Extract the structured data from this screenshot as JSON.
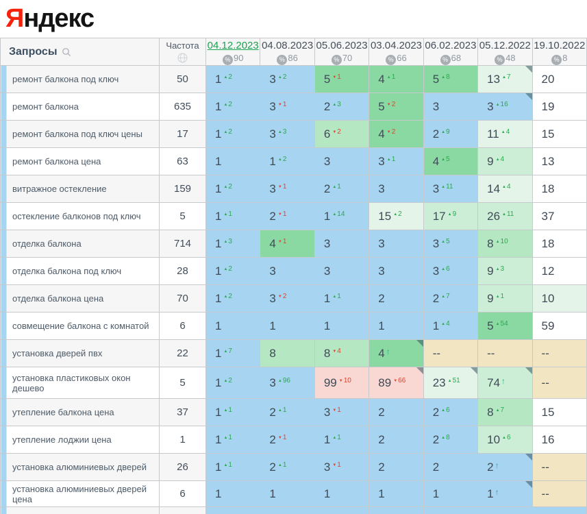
{
  "logo": {
    "first_letter": "Я",
    "rest": "ндекс"
  },
  "colors": {
    "logo_red": "#f5230c",
    "active_date_green": "#1ba24e",
    "delta_up_green": "#2aa94f",
    "delta_down_red": "#e0432e",
    "new_arrow_green": "#2bab7f",
    "cell": {
      "b": "#a7d4f0",
      "g1": "#8bd9a2",
      "g2": "#b4e7c2",
      "g3": "#cdeed6",
      "g4": "#e4f4e9",
      "w": "#ffffff",
      "p": "#f9d8d3",
      "t": "#f2e6c2"
    }
  },
  "table": {
    "queries_header": "Запросы",
    "freq_header": "Частота",
    "percent_symbol": "%",
    "columns": [
      {
        "date": "04.12.2023",
        "coverage": "90",
        "active": true
      },
      {
        "date": "04.08.2023",
        "coverage": "86"
      },
      {
        "date": "05.06.2023",
        "coverage": "70"
      },
      {
        "date": "03.04.2023",
        "coverage": "66"
      },
      {
        "date": "06.02.2023",
        "coverage": "68"
      },
      {
        "date": "05.12.2022",
        "coverage": "48"
      },
      {
        "date": "19.10.2022",
        "coverage": "8"
      }
    ],
    "rows": [
      {
        "query": "ремонт балкона под ключ",
        "freq": "50",
        "cells": [
          {
            "v": "1",
            "d": "2",
            "dir": "up",
            "bg": "b"
          },
          {
            "v": "3",
            "d": "2",
            "dir": "up",
            "bg": "b"
          },
          {
            "v": "5",
            "d": "1",
            "dir": "down",
            "bg": "g1"
          },
          {
            "v": "4",
            "d": "1",
            "dir": "up",
            "bg": "g1"
          },
          {
            "v": "5",
            "d": "8",
            "dir": "up",
            "bg": "g1"
          },
          {
            "v": "13",
            "d": "7",
            "dir": "up",
            "bg": "g4",
            "corner": true
          },
          {
            "v": "20",
            "bg": "w"
          }
        ]
      },
      {
        "query": "ремонт балкона",
        "freq": "635",
        "cells": [
          {
            "v": "1",
            "d": "2",
            "dir": "up",
            "bg": "b"
          },
          {
            "v": "3",
            "d": "1",
            "dir": "down",
            "bg": "b"
          },
          {
            "v": "2",
            "d": "3",
            "dir": "up",
            "bg": "b"
          },
          {
            "v": "5",
            "d": "2",
            "dir": "down",
            "bg": "g1"
          },
          {
            "v": "3",
            "bg": "b"
          },
          {
            "v": "3",
            "d": "16",
            "dir": "up",
            "bg": "b",
            "corner": true
          },
          {
            "v": "19",
            "bg": "w"
          }
        ]
      },
      {
        "query": "ремонт балкона под ключ цены",
        "freq": "17",
        "cells": [
          {
            "v": "1",
            "d": "2",
            "dir": "up",
            "bg": "b"
          },
          {
            "v": "3",
            "d": "3",
            "dir": "up",
            "bg": "b"
          },
          {
            "v": "6",
            "d": "2",
            "dir": "down",
            "bg": "g2"
          },
          {
            "v": "4",
            "d": "2",
            "dir": "down",
            "bg": "g1"
          },
          {
            "v": "2",
            "d": "9",
            "dir": "up",
            "bg": "b"
          },
          {
            "v": "11",
            "d": "4",
            "dir": "up",
            "bg": "g4"
          },
          {
            "v": "15",
            "bg": "w"
          }
        ]
      },
      {
        "query": "ремонт балкона цена",
        "freq": "63",
        "cells": [
          {
            "v": "1",
            "bg": "b"
          },
          {
            "v": "1",
            "d": "2",
            "dir": "up",
            "bg": "b"
          },
          {
            "v": "3",
            "bg": "b"
          },
          {
            "v": "3",
            "d": "1",
            "dir": "up",
            "bg": "b"
          },
          {
            "v": "4",
            "d": "5",
            "dir": "up",
            "bg": "g1"
          },
          {
            "v": "9",
            "d": "4",
            "dir": "up",
            "bg": "g3"
          },
          {
            "v": "13",
            "bg": "w"
          }
        ]
      },
      {
        "query": "витражное остекление",
        "freq": "159",
        "cells": [
          {
            "v": "1",
            "d": "2",
            "dir": "up",
            "bg": "b"
          },
          {
            "v": "3",
            "d": "1",
            "dir": "down",
            "bg": "b"
          },
          {
            "v": "2",
            "d": "1",
            "dir": "up",
            "bg": "b"
          },
          {
            "v": "3",
            "bg": "b"
          },
          {
            "v": "3",
            "d": "11",
            "dir": "up",
            "bg": "b"
          },
          {
            "v": "14",
            "d": "4",
            "dir": "up",
            "bg": "g4"
          },
          {
            "v": "18",
            "bg": "w"
          }
        ]
      },
      {
        "query": "остекление балконов под ключ",
        "freq": "5",
        "cells": [
          {
            "v": "1",
            "d": "1",
            "dir": "up",
            "bg": "b"
          },
          {
            "v": "2",
            "d": "1",
            "dir": "down",
            "bg": "b"
          },
          {
            "v": "1",
            "d": "14",
            "dir": "up",
            "bg": "b"
          },
          {
            "v": "15",
            "d": "2",
            "dir": "up",
            "bg": "g4"
          },
          {
            "v": "17",
            "d": "9",
            "dir": "up",
            "bg": "g3"
          },
          {
            "v": "26",
            "d": "11",
            "dir": "up",
            "bg": "g3"
          },
          {
            "v": "37",
            "bg": "w"
          }
        ]
      },
      {
        "query": "отделка балкона",
        "freq": "714",
        "cells": [
          {
            "v": "1",
            "d": "3",
            "dir": "up",
            "bg": "b"
          },
          {
            "v": "4",
            "d": "1",
            "dir": "down",
            "bg": "g1"
          },
          {
            "v": "3",
            "bg": "b"
          },
          {
            "v": "3",
            "bg": "b"
          },
          {
            "v": "3",
            "d": "5",
            "dir": "up",
            "bg": "b"
          },
          {
            "v": "8",
            "d": "10",
            "dir": "up",
            "bg": "g2"
          },
          {
            "v": "18",
            "bg": "w"
          }
        ]
      },
      {
        "query": "отделка балкона под ключ",
        "freq": "28",
        "cells": [
          {
            "v": "1",
            "d": "2",
            "dir": "up",
            "bg": "b"
          },
          {
            "v": "3",
            "bg": "b"
          },
          {
            "v": "3",
            "bg": "b"
          },
          {
            "v": "3",
            "bg": "b"
          },
          {
            "v": "3",
            "d": "6",
            "dir": "up",
            "bg": "b"
          },
          {
            "v": "9",
            "d": "3",
            "dir": "up",
            "bg": "g3"
          },
          {
            "v": "12",
            "bg": "w"
          }
        ]
      },
      {
        "query": "отделка балкона цена",
        "freq": "70",
        "cells": [
          {
            "v": "1",
            "d": "2",
            "dir": "up",
            "bg": "b"
          },
          {
            "v": "3",
            "d": "2",
            "dir": "down",
            "bg": "b"
          },
          {
            "v": "1",
            "d": "1",
            "dir": "up",
            "bg": "b"
          },
          {
            "v": "2",
            "bg": "b"
          },
          {
            "v": "2",
            "d": "7",
            "dir": "up",
            "bg": "b"
          },
          {
            "v": "9",
            "d": "1",
            "dir": "up",
            "bg": "g3"
          },
          {
            "v": "10",
            "bg": "g4"
          }
        ]
      },
      {
        "query": "совмещение балкона с комнатой",
        "freq": "6",
        "cells": [
          {
            "v": "1",
            "bg": "b"
          },
          {
            "v": "1",
            "bg": "b"
          },
          {
            "v": "1",
            "bg": "b"
          },
          {
            "v": "1",
            "bg": "b"
          },
          {
            "v": "1",
            "d": "4",
            "dir": "up",
            "bg": "b"
          },
          {
            "v": "5",
            "d": "54",
            "dir": "up",
            "bg": "g1"
          },
          {
            "v": "59",
            "bg": "w"
          }
        ]
      },
      {
        "query": "установка дверей пвх",
        "freq": "22",
        "cells": [
          {
            "v": "1",
            "d": "7",
            "dir": "up",
            "bg": "b"
          },
          {
            "v": "8",
            "bg": "g2"
          },
          {
            "v": "8",
            "d": "4",
            "dir": "down",
            "bg": "g2"
          },
          {
            "v": "4",
            "dir": "new",
            "bg": "g1",
            "corner": true
          },
          {
            "v": "--",
            "bg": "t"
          },
          {
            "v": "--",
            "bg": "t"
          },
          {
            "v": "--",
            "bg": "t"
          }
        ]
      },
      {
        "query": "установка пластиковых окон дешево",
        "freq": "5",
        "cells": [
          {
            "v": "1",
            "d": "2",
            "dir": "up",
            "bg": "b"
          },
          {
            "v": "3",
            "d": "96",
            "dir": "up",
            "bg": "b"
          },
          {
            "v": "99",
            "d": "10",
            "dir": "down",
            "bg": "p"
          },
          {
            "v": "89",
            "d": "66",
            "dir": "down",
            "bg": "p",
            "corner": true
          },
          {
            "v": "23",
            "d": "51",
            "dir": "up",
            "bg": "g4",
            "corner": true
          },
          {
            "v": "74",
            "dir": "new",
            "bg": "g3",
            "corner": true
          },
          {
            "v": "--",
            "bg": "t"
          }
        ]
      },
      {
        "query": "утепление балкона цена",
        "freq": "37",
        "cells": [
          {
            "v": "1",
            "d": "1",
            "dir": "up",
            "bg": "b"
          },
          {
            "v": "2",
            "d": "1",
            "dir": "up",
            "bg": "b"
          },
          {
            "v": "3",
            "d": "1",
            "dir": "down",
            "bg": "b"
          },
          {
            "v": "2",
            "bg": "b"
          },
          {
            "v": "2",
            "d": "6",
            "dir": "up",
            "bg": "b"
          },
          {
            "v": "8",
            "d": "7",
            "dir": "up",
            "bg": "g2"
          },
          {
            "v": "15",
            "bg": "w"
          }
        ]
      },
      {
        "query": "утепление лоджии цена",
        "freq": "1",
        "cells": [
          {
            "v": "1",
            "d": "1",
            "dir": "up",
            "bg": "b"
          },
          {
            "v": "2",
            "d": "1",
            "dir": "down",
            "bg": "b"
          },
          {
            "v": "1",
            "d": "1",
            "dir": "up",
            "bg": "b"
          },
          {
            "v": "2",
            "bg": "b"
          },
          {
            "v": "2",
            "d": "8",
            "dir": "up",
            "bg": "b"
          },
          {
            "v": "10",
            "d": "6",
            "dir": "up",
            "bg": "g3"
          },
          {
            "v": "16",
            "bg": "w"
          }
        ]
      },
      {
        "query": "установка алюминиевых дверей",
        "freq": "26",
        "cells": [
          {
            "v": "1",
            "d": "1",
            "dir": "up",
            "bg": "b"
          },
          {
            "v": "2",
            "d": "1",
            "dir": "up",
            "bg": "b"
          },
          {
            "v": "3",
            "d": "1",
            "dir": "down",
            "bg": "b"
          },
          {
            "v": "2",
            "bg": "b"
          },
          {
            "v": "2",
            "bg": "b"
          },
          {
            "v": "2",
            "dir": "new",
            "bg": "b",
            "corner": true
          },
          {
            "v": "--",
            "bg": "t"
          }
        ]
      },
      {
        "query": "установка алюминиевых дверей цена",
        "freq": "6",
        "cells": [
          {
            "v": "1",
            "bg": "b"
          },
          {
            "v": "1",
            "bg": "b"
          },
          {
            "v": "1",
            "bg": "b"
          },
          {
            "v": "1",
            "bg": "b"
          },
          {
            "v": "1",
            "bg": "b"
          },
          {
            "v": "1",
            "dir": "new",
            "bg": "b",
            "corner": true
          },
          {
            "v": "--",
            "bg": "t"
          }
        ]
      }
    ]
  }
}
